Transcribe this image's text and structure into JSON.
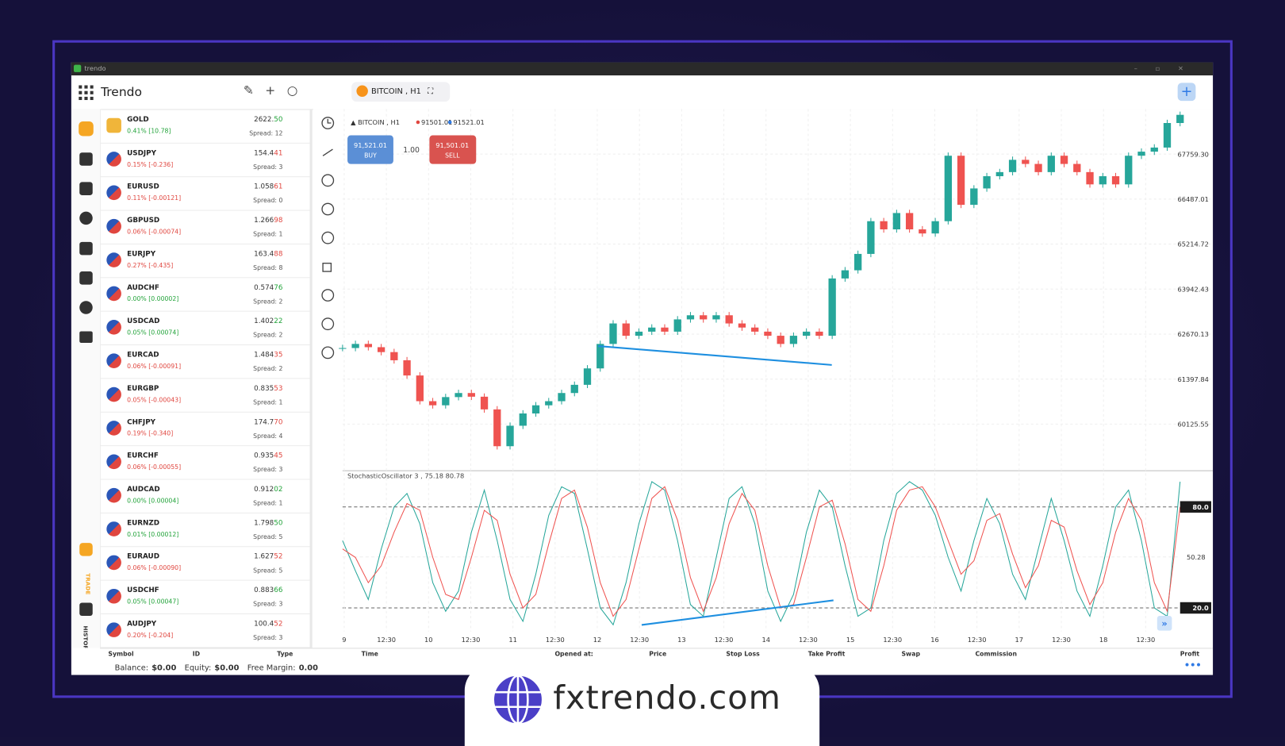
{
  "window": {
    "title": "trendo"
  },
  "header": {
    "app": "Trendo",
    "tab": "BITCOIN , H1"
  },
  "sidebar": {
    "trade": "TRADE",
    "history": "HISTORY"
  },
  "watchlist": [
    {
      "symbol": "GOLD",
      "change": "0.41% [10.78]",
      "price_main": "2622.",
      "price_tail": "50",
      "spread": "Spread: 12",
      "trend": "up"
    },
    {
      "symbol": "USDJPY",
      "change": "0.15% [-0.236]",
      "price_main": "154.4",
      "price_tail": "41",
      "spread": "Spread: 3",
      "trend": "down"
    },
    {
      "symbol": "EURUSD",
      "change": "0.11% [-0.00121]",
      "price_main": "1.058",
      "price_tail": "61",
      "spread": "Spread: 0",
      "trend": "down"
    },
    {
      "symbol": "GBPUSD",
      "change": "0.06% [-0.00074]",
      "price_main": "1.266",
      "price_tail": "98",
      "spread": "Spread: 1",
      "trend": "down"
    },
    {
      "symbol": "EURJPY",
      "change": "0.27% [-0.435]",
      "price_main": "163.4",
      "price_tail": "88",
      "spread": "Spread: 8",
      "trend": "down"
    },
    {
      "symbol": "AUDCHF",
      "change": "0.00% [0.00002]",
      "price_main": "0.574",
      "price_tail": "76",
      "spread": "Spread: 2",
      "trend": "up"
    },
    {
      "symbol": "USDCAD",
      "change": "0.05% [0.00074]",
      "price_main": "1.402",
      "price_tail": "22",
      "spread": "Spread: 2",
      "trend": "up"
    },
    {
      "symbol": "EURCAD",
      "change": "0.06% [-0.00091]",
      "price_main": "1.484",
      "price_tail": "35",
      "spread": "Spread: 2",
      "trend": "down"
    },
    {
      "symbol": "EURGBP",
      "change": "0.05% [-0.00043]",
      "price_main": "0.835",
      "price_tail": "53",
      "spread": "Spread: 1",
      "trend": "down"
    },
    {
      "symbol": "CHFJPY",
      "change": "0.19% [-0.340]",
      "price_main": "174.7",
      "price_tail": "70",
      "spread": "Spread: 4",
      "trend": "down"
    },
    {
      "symbol": "EURCHF",
      "change": "0.06% [-0.00055]",
      "price_main": "0.935",
      "price_tail": "45",
      "spread": "Spread: 3",
      "trend": "down"
    },
    {
      "symbol": "AUDCAD",
      "change": "0.00% [0.00004]",
      "price_main": "0.912",
      "price_tail": "02",
      "spread": "Spread: 1",
      "trend": "up"
    },
    {
      "symbol": "EURNZD",
      "change": "0.01% [0.00012]",
      "price_main": "1.798",
      "price_tail": "50",
      "spread": "Spread: 5",
      "trend": "up"
    },
    {
      "symbol": "EURAUD",
      "change": "0.06% [-0.00090]",
      "price_main": "1.627",
      "price_tail": "52",
      "spread": "Spread: 5",
      "trend": "down"
    },
    {
      "symbol": "USDCHF",
      "change": "0.05% [0.00047]",
      "price_main": "0.883",
      "price_tail": "66",
      "spread": "Spread: 3",
      "trend": "up"
    },
    {
      "symbol": "AUDJPY",
      "change": "0.20% [-0.204]",
      "price_main": "100.4",
      "price_tail": "52",
      "spread": "Spread: 3",
      "trend": "down"
    }
  ],
  "order_panel": {
    "symbol": "BITCOIN , H1",
    "bid": "91501.01",
    "ask": "91521.01",
    "buy_price": "91,521.01",
    "buy": "BUY",
    "lot": "1.00",
    "sell_price": "91,501.01",
    "sell": "SELL"
  },
  "chart_data": [
    {
      "type": "candlestick",
      "up_color": "#26a69a",
      "down_color": "#ef5350",
      "values": [
        62276,
        62392,
        62300,
        62161,
        61930,
        61500,
        60773,
        60657,
        60889,
        61004,
        60900,
        60541,
        59500,
        60079,
        60426,
        60657,
        60773,
        61004,
        61236,
        61700,
        62392,
        62971,
        62623,
        62739,
        62855,
        62739,
        63086,
        63202,
        63086,
        63202,
        62971,
        62855,
        62739,
        62623,
        62392,
        62623,
        62739,
        62623,
        64243,
        64474,
        64937,
        65862,
        65631,
        66093,
        65631,
        65515,
        65862,
        67713,
        66325,
        66788,
        67134,
        67250,
        67597,
        67481,
        67250,
        67713,
        67481,
        67250,
        66903,
        67134,
        66903,
        67713,
        67828,
        67944,
        68638,
        68869
      ],
      "ylim": [
        58853,
        69032
      ],
      "yticks": [
        {
          "value": 67759.3,
          "label": "67759.30"
        },
        {
          "value": 66487.01,
          "label": "66487.01"
        },
        {
          "value": 65214.72,
          "label": "65214.72"
        },
        {
          "value": 63942.43,
          "label": "63942.43"
        },
        {
          "value": 62670.13,
          "label": "62670.13"
        },
        {
          "value": 61397.84,
          "label": "61397.84"
        },
        {
          "value": 60125.55,
          "label": "60125.55"
        }
      ],
      "grid": true
    },
    {
      "type": "line",
      "title": "StochasticOscillator 3 , 75.18 80.78",
      "series": [
        {
          "color": "#26a69a",
          "values": [
            60,
            42,
            25,
            55,
            80,
            88,
            70,
            35,
            18,
            30,
            65,
            90,
            60,
            25,
            12,
            40,
            75,
            92,
            88,
            55,
            20,
            10,
            35,
            70,
            95,
            90,
            60,
            22,
            15,
            50,
            85,
            92,
            70,
            30,
            12,
            28,
            65,
            90,
            80,
            45,
            15,
            20,
            60,
            88,
            95,
            90,
            75,
            50,
            30,
            60,
            85,
            70,
            40,
            25,
            55,
            85,
            60,
            30,
            15,
            45,
            80,
            90,
            60,
            20,
            15,
            95
          ]
        },
        {
          "color": "#ef5350",
          "values": [
            55,
            50,
            35,
            45,
            65,
            82,
            78,
            50,
            28,
            25,
            50,
            78,
            72,
            40,
            20,
            28,
            58,
            85,
            90,
            68,
            35,
            15,
            25,
            55,
            85,
            92,
            72,
            38,
            18,
            38,
            70,
            88,
            78,
            45,
            20,
            22,
            50,
            80,
            84,
            58,
            25,
            18,
            45,
            78,
            90,
            92,
            80,
            60,
            40,
            48,
            72,
            76,
            52,
            32,
            45,
            72,
            68,
            42,
            22,
            35,
            65,
            85,
            72,
            35,
            18,
            80
          ]
        }
      ],
      "ylim": [
        6,
        101
      ],
      "yticks": [
        {
          "value": 80,
          "label": "80.0"
        },
        50.28,
        {
          "value": 20,
          "label": "20.0"
        }
      ],
      "levels": [
        0,
        2
      ]
    }
  ],
  "time_axis": [
    "9",
    "12:30",
    "10",
    "12:30",
    "11",
    "12:30",
    "12",
    "12:30",
    "13",
    "12:30",
    "14",
    "12:30",
    "15",
    "12:30",
    "16",
    "12:30",
    "17",
    "12:30",
    "18",
    "12:30"
  ],
  "positions": {
    "columns": [
      "Symbol",
      "ID",
      "Type",
      "Time",
      "Opened at:",
      "Price",
      "Stop Loss",
      "Take Profit",
      "Swap",
      "Commission",
      "Profit"
    ],
    "balance_label": "Balance:",
    "balance": "$0.00",
    "equity_label": "Equity:",
    "equity": "$0.00",
    "margin_label": "Free Margin:",
    "margin": "0.00"
  },
  "brand": "fxtrendo.com"
}
